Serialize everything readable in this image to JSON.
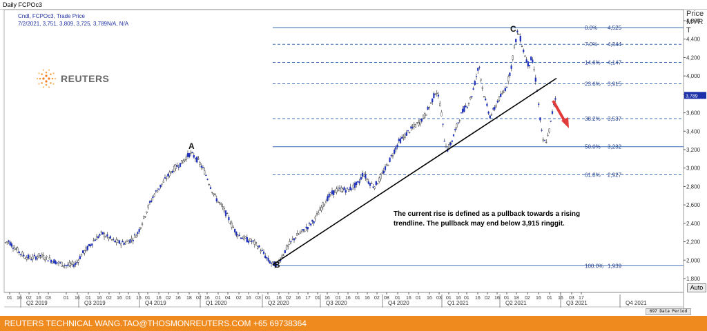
{
  "window": {
    "title": "Daily FCPOc3",
    "info_line1": "Cndl, FCPOc3, Trade Price",
    "info_line2": "7/2/2021, 3,751, 3,809, 3,725, 3,789N/A, N/A"
  },
  "logo": {
    "text": "REUTERS"
  },
  "price_axis_header": [
    "Price",
    "MYR",
    "T"
  ],
  "auto_button": "Auto",
  "data_period": "697 Data Period",
  "footer": "REUTERS TECHNICAL  WANG.TAO@THOSMONREUTERS.COM  +65 69738364",
  "annotation": "The current rise is defined as a pullback towards a rising trendline. The pullback may end below 3,915 ringgit.",
  "chart_data": {
    "type": "candlestick",
    "title": "Daily FCPOc3",
    "ylabel": "Price MYR T",
    "ylim": [
      1650,
      4720
    ],
    "y_ticks": [
      "1,800",
      "2,000",
      "2,200",
      "2,400",
      "2,600",
      "2,800",
      "3,000",
      "3,200",
      "3,400",
      "3,600",
      "3,800",
      "4,000",
      "4,200",
      "4,400",
      "4,600"
    ],
    "last_price_tag": "3,789",
    "x_day_ticks": [
      "01",
      "16",
      "02",
      "16",
      "03",
      "01",
      "16",
      "01",
      "16",
      "02",
      "16",
      "01",
      "16",
      "01",
      "16",
      "02",
      "16",
      "18",
      "02",
      "16",
      "01",
      "04",
      "02",
      "16",
      "03",
      "01",
      "16",
      "02",
      "16",
      "17",
      "01",
      "16",
      "01",
      "16",
      "01",
      "16",
      "02",
      "08",
      "01",
      "16",
      "01",
      "16",
      "03",
      "01",
      "16",
      "01",
      "16",
      "02",
      "16",
      "01",
      "18",
      "02",
      "16",
      "01",
      "16",
      "03",
      "17"
    ],
    "quarters": [
      "Q2 2019",
      "Q3 2019",
      "Q4 2019",
      "Q1 2020",
      "Q2 2020",
      "Q3 2020",
      "Q4 2020",
      "Q1 2021",
      "Q2 2021",
      "Q3 2021",
      "Q4 2021"
    ],
    "fib_levels": [
      {
        "label": "0.0%",
        "value_text": "4,525",
        "value": 4525
      },
      {
        "label": "7.0%",
        "value_text": "4,344",
        "value": 4344
      },
      {
        "label": "14.6%",
        "value_text": "4,147",
        "value": 4147
      },
      {
        "label": "23.6%",
        "value_text": "3,915",
        "value": 3915
      },
      {
        "label": "38.2%",
        "value_text": "3,537",
        "value": 3537
      },
      {
        "label": "50.0%",
        "value_text": "3,232",
        "value": 3232
      },
      {
        "label": "61.8%",
        "value_text": "2,927",
        "value": 2927
      },
      {
        "label": "100.0%",
        "value_text": "1,939",
        "value": 1939
      }
    ],
    "wave_labels": [
      "A",
      "B",
      "C"
    ],
    "price_path": [
      [
        0,
        2180
      ],
      [
        6,
        2210
      ],
      [
        12,
        2160
      ],
      [
        20,
        2100
      ],
      [
        30,
        2040
      ],
      [
        40,
        2020
      ],
      [
        52,
        2050
      ],
      [
        62,
        2020
      ],
      [
        72,
        1990
      ],
      [
        82,
        1960
      ],
      [
        92,
        1940
      ],
      [
        104,
        1960
      ],
      [
        112,
        2060
      ],
      [
        122,
        2140
      ],
      [
        132,
        2230
      ],
      [
        142,
        2290
      ],
      [
        150,
        2250
      ],
      [
        158,
        2210
      ],
      [
        166,
        2190
      ],
      [
        176,
        2190
      ],
      [
        186,
        2230
      ],
      [
        194,
        2300
      ],
      [
        202,
        2450
      ],
      [
        210,
        2600
      ],
      [
        218,
        2720
      ],
      [
        226,
        2800
      ],
      [
        234,
        2880
      ],
      [
        242,
        2960
      ],
      [
        250,
        3020
      ],
      [
        258,
        3060
      ],
      [
        264,
        3120
      ],
      [
        270,
        3160
      ],
      [
        276,
        3120
      ],
      [
        282,
        3070
      ],
      [
        288,
        2990
      ],
      [
        294,
        2900
      ],
      [
        300,
        2780
      ],
      [
        306,
        2680
      ],
      [
        312,
        2620
      ],
      [
        318,
        2550
      ],
      [
        324,
        2470
      ],
      [
        330,
        2380
      ],
      [
        336,
        2300
      ],
      [
        344,
        2250
      ],
      [
        352,
        2220
      ],
      [
        360,
        2200
      ],
      [
        368,
        2150
      ],
      [
        376,
        2070
      ],
      [
        382,
        2000
      ],
      [
        388,
        1960
      ],
      [
        395,
        1950
      ],
      [
        402,
        2040
      ],
      [
        410,
        2140
      ],
      [
        418,
        2220
      ],
      [
        426,
        2280
      ],
      [
        434,
        2320
      ],
      [
        442,
        2380
      ],
      [
        450,
        2440
      ],
      [
        458,
        2550
      ],
      [
        466,
        2650
      ],
      [
        474,
        2720
      ],
      [
        482,
        2760
      ],
      [
        490,
        2770
      ],
      [
        498,
        2760
      ],
      [
        506,
        2800
      ],
      [
        514,
        2840
      ],
      [
        520,
        2950
      ],
      [
        528,
        2850
      ],
      [
        536,
        2800
      ],
      [
        544,
        2880
      ],
      [
        552,
        2990
      ],
      [
        560,
        3110
      ],
      [
        566,
        3200
      ],
      [
        572,
        3290
      ],
      [
        578,
        3330
      ],
      [
        586,
        3400
      ],
      [
        594,
        3450
      ],
      [
        602,
        3500
      ],
      [
        610,
        3580
      ],
      [
        618,
        3700
      ],
      [
        626,
        3850
      ],
      [
        632,
        3680
      ],
      [
        638,
        3300
      ],
      [
        642,
        3200
      ],
      [
        648,
        3280
      ],
      [
        654,
        3420
      ],
      [
        660,
        3550
      ],
      [
        666,
        3640
      ],
      [
        672,
        3700
      ],
      [
        678,
        3800
      ],
      [
        684,
        4000
      ],
      [
        688,
        4120
      ],
      [
        692,
        3900
      ],
      [
        698,
        3700
      ],
      [
        704,
        3560
      ],
      [
        710,
        3640
      ],
      [
        716,
        3750
      ],
      [
        722,
        3800
      ],
      [
        728,
        3900
      ],
      [
        734,
        4080
      ],
      [
        740,
        4350
      ],
      [
        744,
        4490
      ],
      [
        748,
        4400
      ],
      [
        752,
        4280
      ],
      [
        756,
        4180
      ],
      [
        760,
        4110
      ],
      [
        764,
        4200
      ],
      [
        768,
        4050
      ],
      [
        772,
        3850
      ],
      [
        776,
        3550
      ],
      [
        780,
        3300
      ],
      [
        784,
        3280
      ],
      [
        788,
        3350
      ],
      [
        792,
        3500
      ],
      [
        796,
        3700
      ],
      [
        800,
        3789
      ]
    ],
    "grid": false
  }
}
